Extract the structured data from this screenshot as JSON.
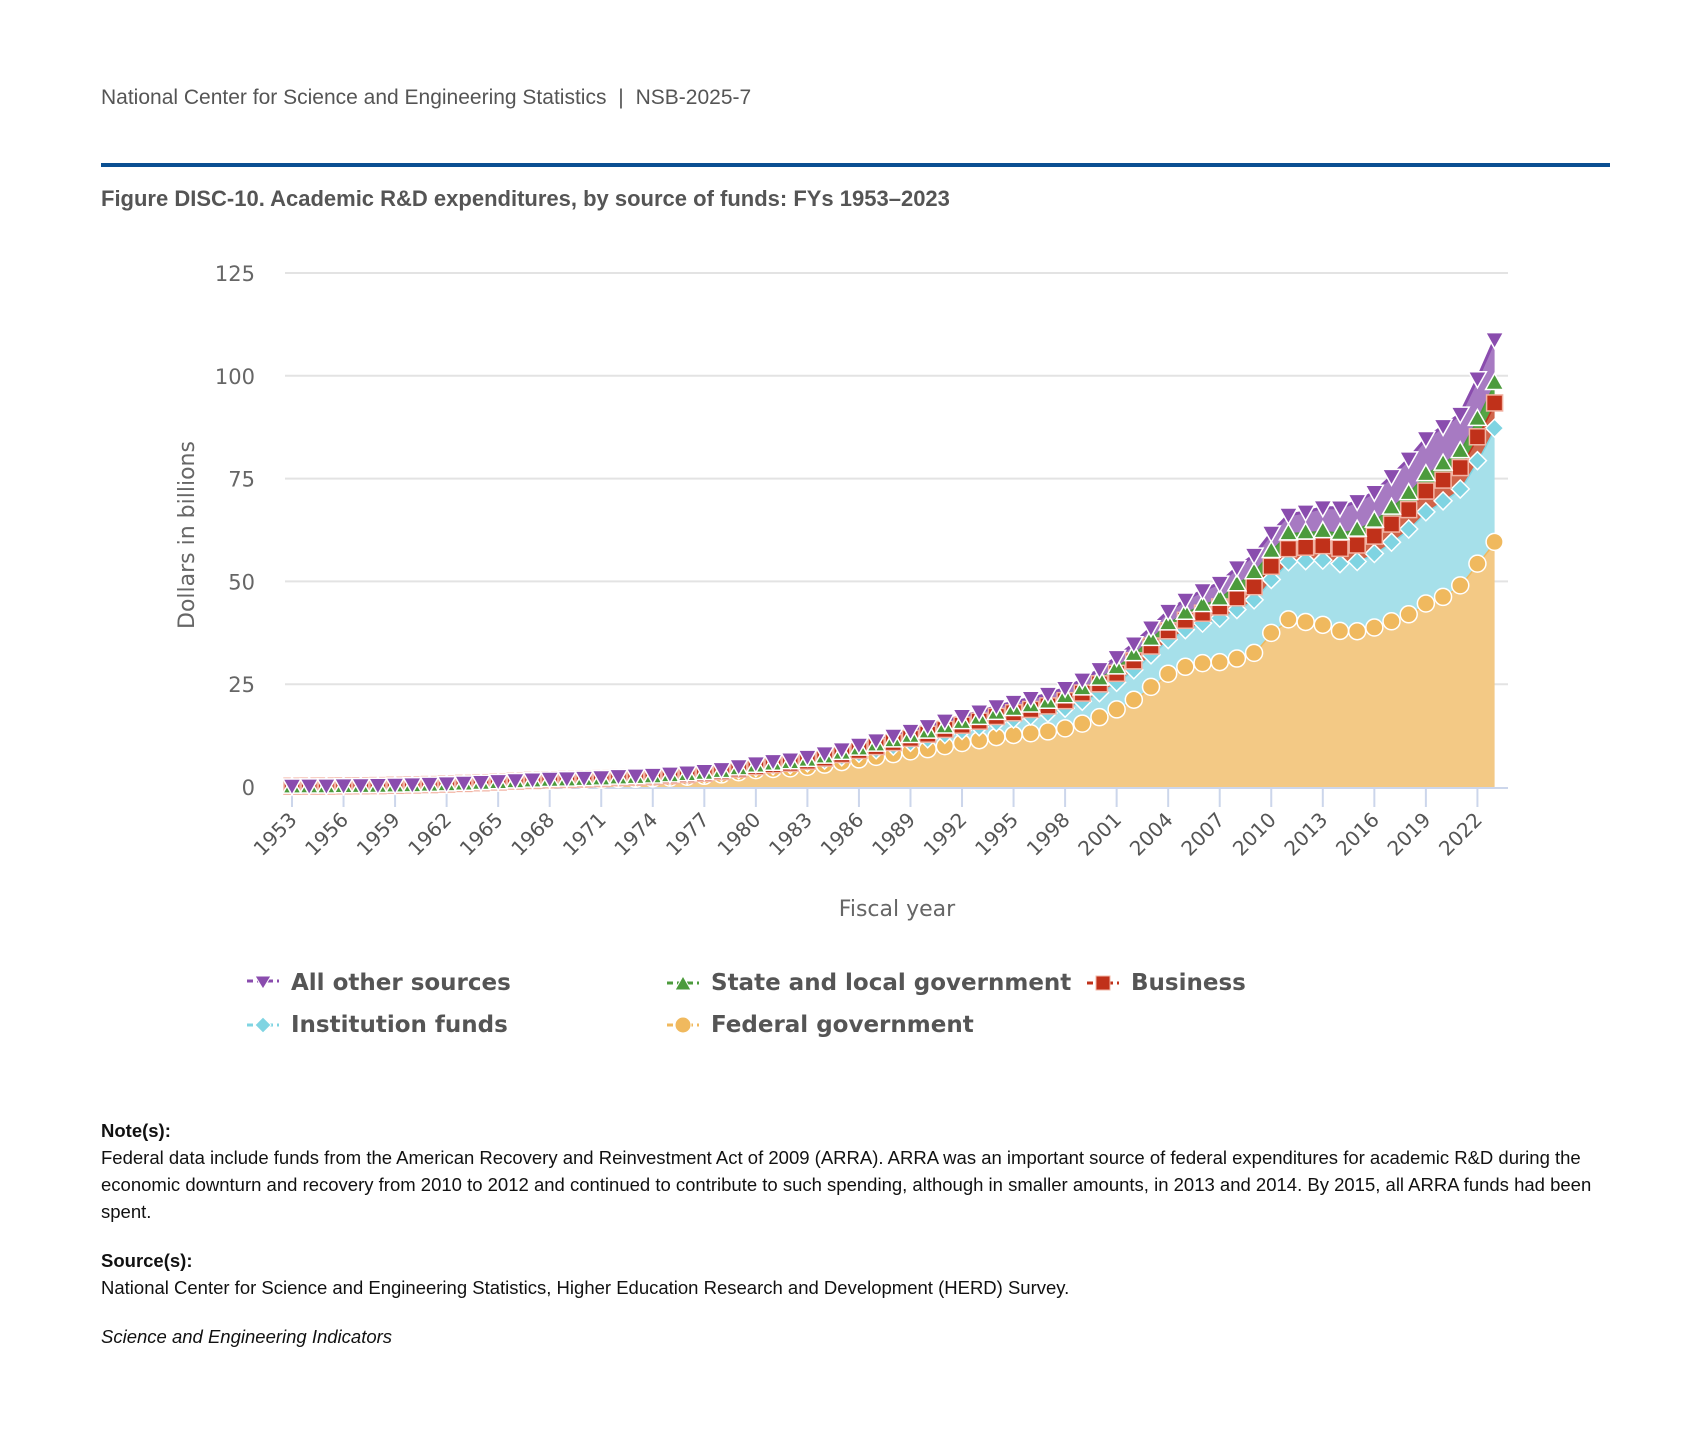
{
  "header": {
    "org": "National Center for Science and Engineering Statistics",
    "separator": "|",
    "report_id": "NSB-2025-7"
  },
  "figure_title": "Figure DISC-10. Academic R&D expenditures, by source of funds: FYs 1953–2023",
  "chart_data": {
    "type": "area",
    "stacked": true,
    "title": "Figure DISC-10. Academic R&D expenditures, by source of funds: FYs 1953–2023",
    "xlabel": "Fiscal year",
    "ylabel": "Dollars in billions",
    "ylim": [
      0,
      125
    ],
    "yticks": [
      0,
      25,
      50,
      75,
      100,
      125
    ],
    "xticks": [
      1953,
      1956,
      1959,
      1962,
      1965,
      1968,
      1971,
      1974,
      1977,
      1980,
      1983,
      1986,
      1989,
      1992,
      1995,
      1998,
      2001,
      2004,
      2007,
      2010,
      2013,
      2016,
      2019,
      2022
    ],
    "grid": true,
    "legend_position": "bottom",
    "x": [
      1953,
      1954,
      1955,
      1956,
      1957,
      1958,
      1959,
      1960,
      1961,
      1962,
      1963,
      1964,
      1965,
      1966,
      1967,
      1968,
      1969,
      1970,
      1971,
      1972,
      1973,
      1974,
      1975,
      1976,
      1977,
      1978,
      1979,
      1980,
      1981,
      1982,
      1983,
      1984,
      1985,
      1986,
      1987,
      1988,
      1989,
      1990,
      1991,
      1992,
      1993,
      1994,
      1995,
      1996,
      1997,
      1998,
      1999,
      2000,
      2001,
      2002,
      2003,
      2004,
      2005,
      2006,
      2007,
      2008,
      2009,
      2010,
      2011,
      2012,
      2013,
      2014,
      2015,
      2016,
      2017,
      2018,
      2019,
      2020,
      2021,
      2022,
      2023
    ],
    "series": [
      {
        "name": "Federal government",
        "color": "#f0b95e",
        "fill": "#f3c985",
        "marker": "circle",
        "values": [
          0.14,
          0.16,
          0.17,
          0.21,
          0.24,
          0.28,
          0.34,
          0.41,
          0.5,
          0.61,
          0.76,
          0.92,
          1.07,
          1.26,
          1.4,
          1.52,
          1.58,
          1.65,
          1.75,
          1.95,
          2.0,
          2.11,
          2.29,
          2.49,
          2.73,
          3.06,
          3.6,
          4.1,
          4.39,
          4.53,
          4.89,
          5.43,
          6.06,
          6.71,
          7.33,
          7.98,
          8.66,
          9.2,
          9.94,
          10.7,
          11.38,
          12.14,
          12.66,
          13.08,
          13.52,
          14.26,
          15.42,
          16.98,
          18.87,
          21.23,
          24.35,
          27.55,
          29.23,
          30.13,
          30.38,
          31.24,
          32.62,
          37.48,
          40.77,
          40.14,
          39.44,
          37.96,
          37.89,
          38.79,
          40.3,
          42.0,
          44.63,
          46.23,
          49.04,
          54.32,
          59.61
        ]
      },
      {
        "name": "Institution funds",
        "color": "#7fd4e2",
        "fill": "#a6e0ea",
        "marker": "diamond",
        "values": [
          0.03,
          0.03,
          0.03,
          0.04,
          0.04,
          0.04,
          0.05,
          0.05,
          0.06,
          0.07,
          0.08,
          0.09,
          0.11,
          0.13,
          0.15,
          0.17,
          0.19,
          0.22,
          0.24,
          0.27,
          0.3,
          0.32,
          0.36,
          0.4,
          0.45,
          0.51,
          0.58,
          0.64,
          0.75,
          0.88,
          1.0,
          1.12,
          1.28,
          1.47,
          1.7,
          1.96,
          2.21,
          2.51,
          2.83,
          3.04,
          3.27,
          3.56,
          3.85,
          4.16,
          4.49,
          4.9,
          5.42,
          5.96,
          6.59,
          7.26,
          7.79,
          8.31,
          9.03,
          9.73,
          10.69,
          11.91,
          12.89,
          12.99,
          14.01,
          14.89,
          15.74,
          16.35,
          16.95,
          18.0,
          19.23,
          20.74,
          22.28,
          23.35,
          23.43,
          25.04,
          27.66
        ]
      },
      {
        "name": "Business",
        "color": "#c0311a",
        "fill": "#d0644a",
        "marker": "square",
        "values": [
          0.02,
          0.02,
          0.02,
          0.02,
          0.02,
          0.02,
          0.03,
          0.03,
          0.03,
          0.03,
          0.03,
          0.03,
          0.04,
          0.04,
          0.04,
          0.05,
          0.05,
          0.06,
          0.06,
          0.07,
          0.08,
          0.1,
          0.11,
          0.12,
          0.14,
          0.17,
          0.19,
          0.24,
          0.29,
          0.34,
          0.39,
          0.48,
          0.56,
          0.7,
          0.79,
          0.87,
          0.96,
          1.13,
          1.23,
          1.29,
          1.36,
          1.45,
          1.55,
          1.62,
          1.71,
          1.84,
          2.0,
          2.15,
          2.19,
          2.19,
          2.14,
          2.13,
          2.29,
          2.4,
          2.71,
          2.87,
          3.2,
          3.2,
          3.18,
          3.28,
          3.51,
          3.74,
          4.02,
          4.22,
          4.42,
          4.72,
          5.06,
          5.06,
          5.22,
          5.81,
          6.13
        ]
      },
      {
        "name": "State and local government",
        "color": "#4c9b3c",
        "fill": "#55a545",
        "marker": "triangle-up",
        "values": [
          0.02,
          0.02,
          0.02,
          0.02,
          0.03,
          0.03,
          0.03,
          0.03,
          0.04,
          0.04,
          0.04,
          0.05,
          0.05,
          0.06,
          0.07,
          0.08,
          0.09,
          0.1,
          0.11,
          0.12,
          0.14,
          0.16,
          0.18,
          0.2,
          0.22,
          0.24,
          0.27,
          0.31,
          0.35,
          0.4,
          0.45,
          0.49,
          0.52,
          0.57,
          0.62,
          0.66,
          0.7,
          0.76,
          0.83,
          0.87,
          0.91,
          0.99,
          1.03,
          1.07,
          1.12,
          1.18,
          1.26,
          1.39,
          1.57,
          1.75,
          1.85,
          1.91,
          1.94,
          2.13,
          2.14,
          3.4,
          3.64,
          3.85,
          3.84,
          3.7,
          3.67,
          3.85,
          3.86,
          3.88,
          4.1,
          4.14,
          4.24,
          4.12,
          4.12,
          4.48,
          4.96
        ]
      },
      {
        "name": "All other sources",
        "color": "#8a4cae",
        "fill": "#a77ac2",
        "marker": "triangle-down",
        "values": [
          0.04,
          0.04,
          0.04,
          0.04,
          0.04,
          0.05,
          0.05,
          0.05,
          0.06,
          0.06,
          0.07,
          0.08,
          0.09,
          0.1,
          0.11,
          0.12,
          0.13,
          0.14,
          0.15,
          0.17,
          0.19,
          0.21,
          0.24,
          0.27,
          0.3,
          0.32,
          0.36,
          0.4,
          0.44,
          0.48,
          0.53,
          0.59,
          0.66,
          0.76,
          0.84,
          0.94,
          1.05,
          1.15,
          1.25,
          1.31,
          1.37,
          1.44,
          1.55,
          1.65,
          1.74,
          1.84,
          1.96,
          2.12,
          2.29,
          2.42,
          2.6,
          2.86,
          3.0,
          3.41,
          3.66,
          3.94,
          4.05,
          4.26,
          4.35,
          4.91,
          5.57,
          6.0,
          6.75,
          6.8,
          7.5,
          8.2,
          8.53,
          8.93,
          8.88,
          9.62,
          10.44
        ]
      }
    ]
  },
  "legend": {
    "items": [
      {
        "label": "All other sources",
        "marker": "triangle-down",
        "color": "#8a4cae"
      },
      {
        "label": "State and local government",
        "marker": "triangle-up",
        "color": "#4c9b3c"
      },
      {
        "label": "Business",
        "marker": "square",
        "color": "#c0311a"
      },
      {
        "label": "Institution funds",
        "marker": "diamond",
        "color": "#7fd4e2"
      },
      {
        "label": "Federal government",
        "marker": "circle",
        "color": "#f0b95e"
      }
    ]
  },
  "notes": {
    "notes_label": "Note(s):",
    "notes_text": "Federal data include funds from the American Recovery and Reinvestment Act of 2009 (ARRA). ARRA was an important source of federal expenditures for academic R&D during the economic downturn and recovery from 2010 to 2012 and continued to contribute to such spending, although in smaller amounts, in 2013 and 2014. By 2015, all ARRA funds had been spent.",
    "source_label": "Source(s):",
    "source_text": "National Center for Science and Engineering Statistics, Higher Education Research and Development (HERD) Survey.",
    "publication": "Science and Engineering Indicators"
  }
}
